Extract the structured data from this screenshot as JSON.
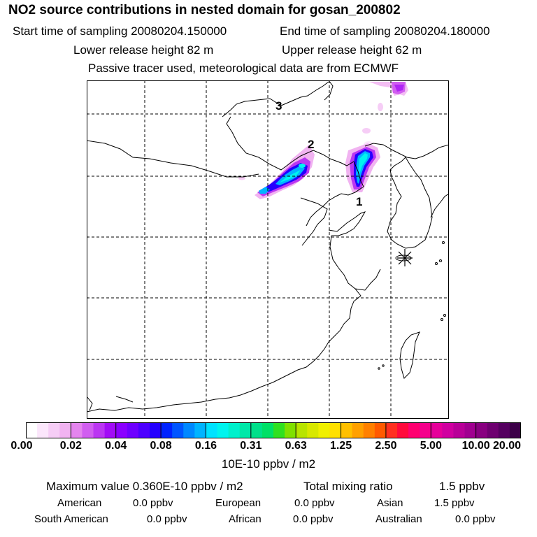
{
  "title": "NO2 source contributions in nested domain for gosan_200802",
  "sampling": {
    "start": "Start time of sampling 20080204.150000",
    "end": "End time of sampling 20080204.180000"
  },
  "release": {
    "lower": "Lower release height   82 m",
    "upper": "Upper release height   62 m"
  },
  "note": "Passive tracer used, meteorological data are from ECMWF",
  "map": {
    "sources": [
      {
        "label": "1"
      },
      {
        "label": "2"
      },
      {
        "label": "3"
      }
    ]
  },
  "colorbar": {
    "ticks": [
      "0.00",
      "0.02",
      "0.04",
      "0.08",
      "0.16",
      "0.31",
      "0.63",
      "1.25",
      "2.50",
      "5.00",
      "10.00",
      "20.00"
    ],
    "colors": [
      "#ffffff",
      "#fbe6fb",
      "#f6cdf6",
      "#f1b3f1",
      "#e485ee",
      "#d15ef0",
      "#bb36f2",
      "#a20cf6",
      "#8a00ff",
      "#6e00ff",
      "#4d00ff",
      "#2400ff",
      "#0022ff",
      "#0055ff",
      "#0088ff",
      "#00b4ff",
      "#00e2ff",
      "#00f4ee",
      "#00f0cc",
      "#00e8a8",
      "#00e08a",
      "#00e066",
      "#30e020",
      "#80e000",
      "#b8e400",
      "#d8e800",
      "#f0f000",
      "#ffe000",
      "#ffc000",
      "#ffa000",
      "#ff8000",
      "#ff5a00",
      "#ff3020",
      "#ff0a3c",
      "#ff0070",
      "#f5008c",
      "#e6009a",
      "#d000a0",
      "#b80098",
      "#a00090",
      "#880080",
      "#6e0070",
      "#550060",
      "#3c0048"
    ],
    "units": "10E-10 ppbv / m2"
  },
  "summary": {
    "max": "Maximum value  0.360E-10 ppbv / m2",
    "total": "Total mixing ratio",
    "total_value": "1.5 ppbv"
  },
  "regions": [
    {
      "name": "American",
      "value": "0.0 ppbv"
    },
    {
      "name": "European",
      "value": "0.0 ppbv"
    },
    {
      "name": "Asian",
      "value": "1.5 ppbv"
    },
    {
      "name": "South American",
      "value": "0.0 ppbv"
    },
    {
      "name": "African",
      "value": "0.0 ppbv"
    },
    {
      "name": "Australian",
      "value": "0.0 ppbv"
    }
  ]
}
